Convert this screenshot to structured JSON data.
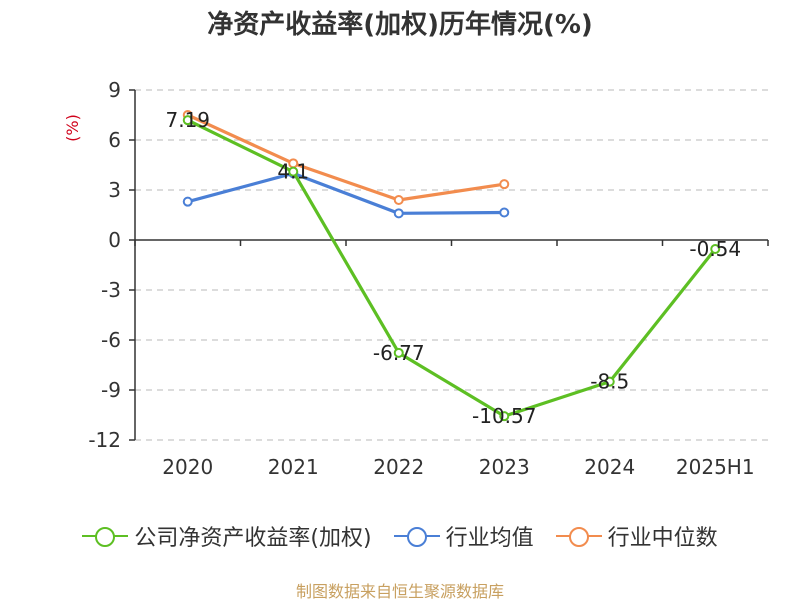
{
  "chart_data": {
    "type": "line",
    "title": "净资产收益率(加权)历年情况(%)",
    "y_unit_label": "(%)",
    "categories": [
      "2020",
      "2021",
      "2022",
      "2023",
      "2024",
      "2025H1"
    ],
    "ylim": [
      -12,
      9
    ],
    "yticks": [
      "9",
      "6",
      "3",
      "0",
      "-3",
      "-6",
      "-9",
      "-12"
    ],
    "grid": true,
    "legend_position": "bottom",
    "series": [
      {
        "name": "公司净资产收益率(加权)",
        "color": "#5dbf23",
        "values": [
          7.19,
          4.1,
          -6.77,
          -10.57,
          -8.5,
          -0.54
        ],
        "labels": [
          "7.19",
          "4.1",
          "-6.77",
          "-10.57",
          "-8.5",
          "-0.54"
        ]
      },
      {
        "name": "行业均值",
        "color": "#4a7fd6",
        "values": [
          2.3,
          4.0,
          1.6,
          1.65,
          null,
          null
        ]
      },
      {
        "name": "行业中位数",
        "color": "#f28c4e",
        "values": [
          7.5,
          4.6,
          2.4,
          3.35,
          null,
          null
        ]
      }
    ]
  },
  "source": "制图数据来自恒生聚源数据库"
}
